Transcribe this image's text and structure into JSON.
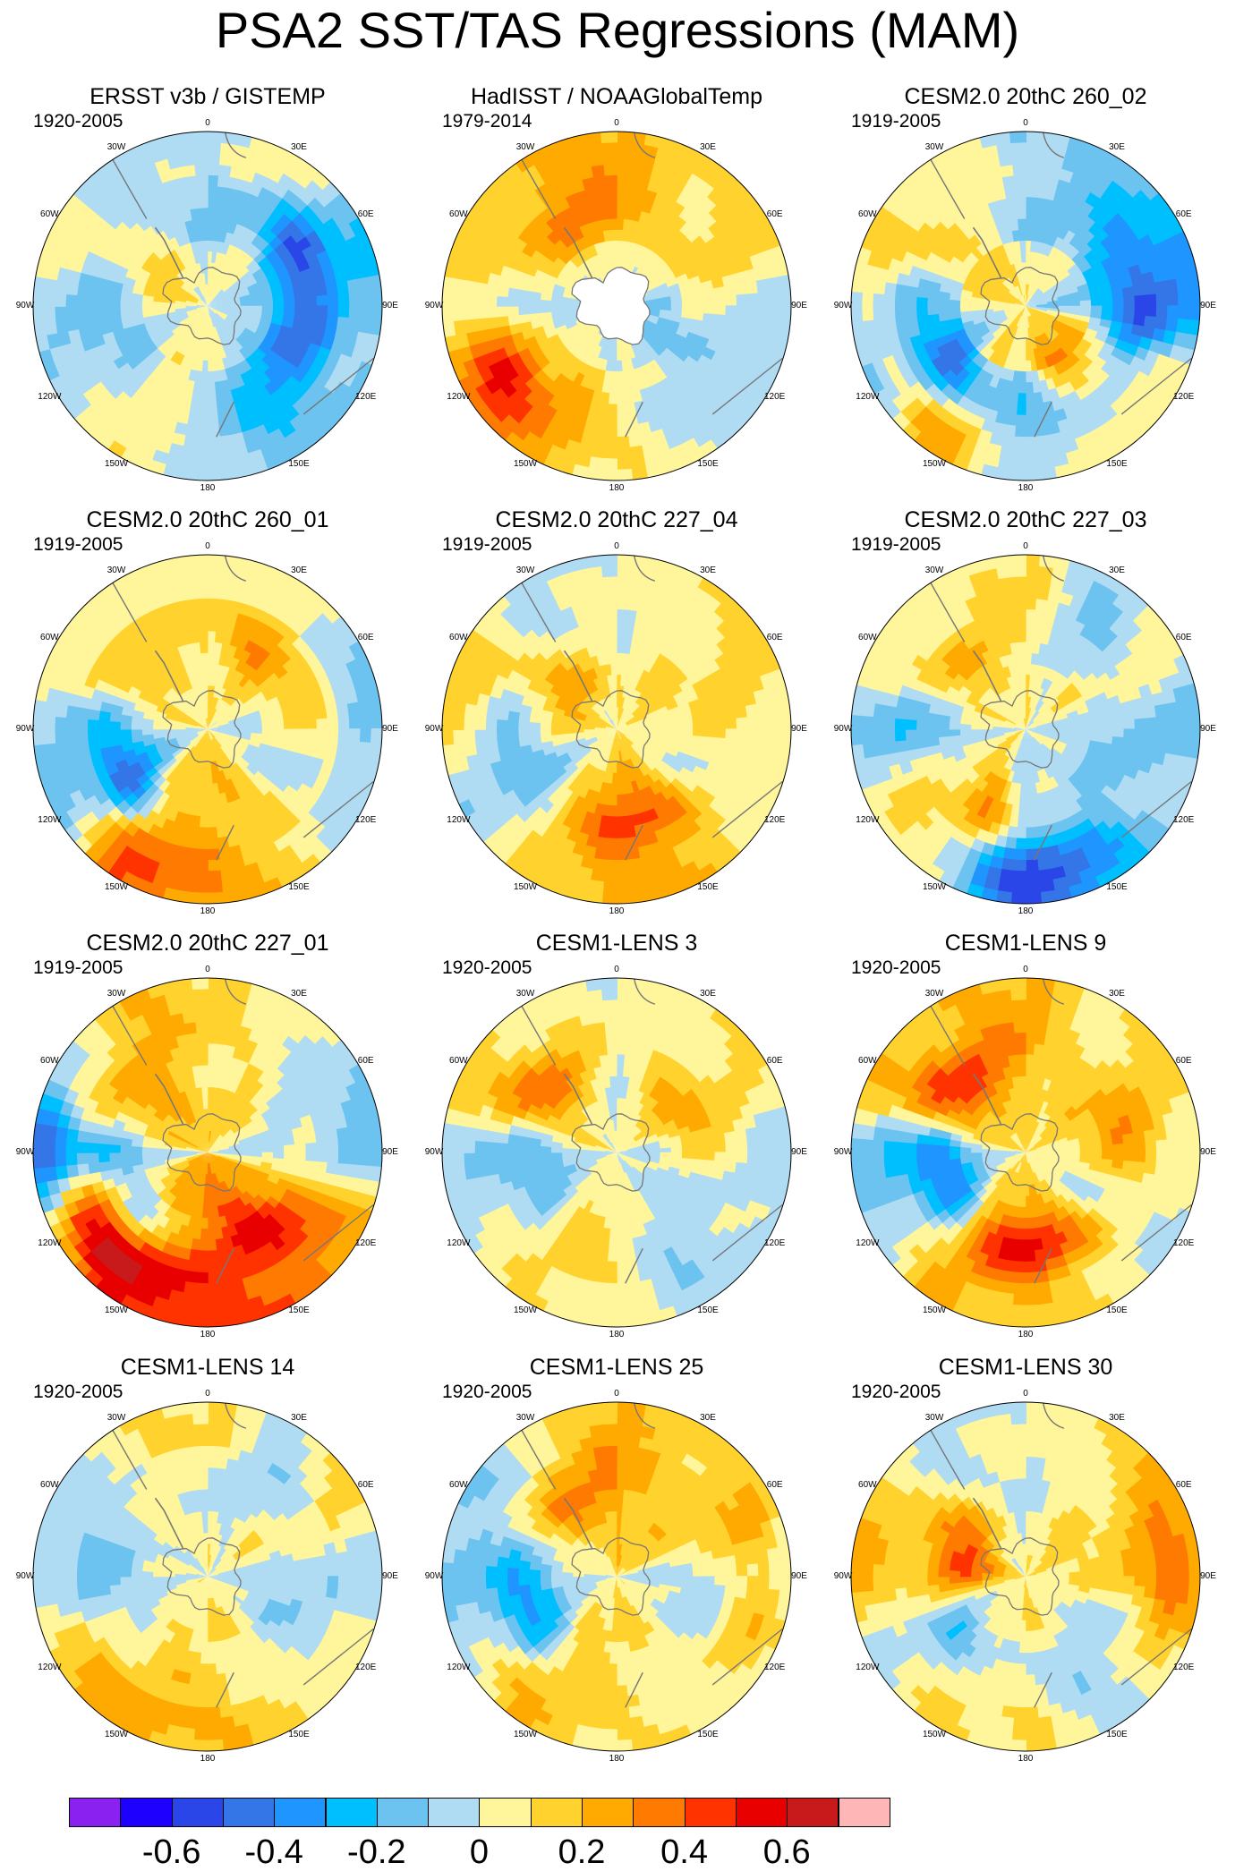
{
  "title": "PSA2 SST/TAS Regressions (MAM)",
  "longitude_labels": [
    "0",
    "30E",
    "60E",
    "90E",
    "120E",
    "150E",
    "180",
    "150W",
    "120W",
    "90W",
    "60W",
    "30W"
  ],
  "panels": [
    {
      "title": "ERSST v3b / GISTEMP",
      "period": "1920-2005",
      "pattern": [
        -0.08,
        0.05,
        -0.18,
        -0.12,
        -0.15,
        -0.18,
        -0.05,
        0.08,
        -0.1,
        -0.12,
        0.05,
        -0.05
      ],
      "rings": [
        0.08,
        -0.05,
        0.05
      ],
      "land": "white-gaps",
      "blobs": [
        [
          60,
          0.6,
          -0.3
        ],
        [
          110,
          0.55,
          -0.25
        ],
        [
          300,
          0.3,
          0.12
        ]
      ]
    },
    {
      "title": "HadISST / NOAAGlobalTemp",
      "period": "1979-2014",
      "pattern": [
        0.15,
        0.08,
        0.12,
        -0.05,
        -0.12,
        -0.05,
        0.05,
        0.15,
        0.2,
        -0.08,
        0.1,
        0.15
      ],
      "rings": [
        -0.1,
        0.05,
        0.1
      ],
      "land": "white-antarctica",
      "blobs": [
        [
          240,
          0.75,
          0.25
        ],
        [
          345,
          0.55,
          0.2
        ]
      ]
    },
    {
      "title": "CESM2.0 20thC 260_02",
      "period": "1919-2005",
      "pattern": [
        -0.05,
        -0.1,
        -0.2,
        -0.25,
        0.1,
        0.08,
        -0.05,
        0.2,
        -0.2,
        -0.1,
        0.15,
        0.1
      ],
      "rings": [
        0.15,
        -0.08,
        -0.05
      ],
      "land": "grey",
      "blobs": [
        [
          95,
          0.65,
          -0.3
        ],
        [
          215,
          0.55,
          -0.35
        ],
        [
          240,
          0.85,
          0.22
        ],
        [
          140,
          0.4,
          0.22
        ]
      ]
    },
    {
      "title": "CESM2.0 20thC 260_01",
      "period": "1919-2005",
      "pattern": [
        0.05,
        0.1,
        -0.05,
        -0.05,
        -0.08,
        0.15,
        0.2,
        0.25,
        -0.2,
        -0.1,
        0.12,
        0.08
      ],
      "rings": [
        0.08,
        0.1,
        -0.05
      ],
      "land": "grey",
      "blobs": [
        [
          240,
          0.55,
          -0.35
        ],
        [
          210,
          0.85,
          0.25
        ],
        [
          45,
          0.55,
          0.2
        ]
      ]
    },
    {
      "title": "CESM2.0 20thC 227_04",
      "period": "1919-2005",
      "pattern": [
        -0.05,
        0.05,
        0.1,
        0.05,
        -0.05,
        0.15,
        0.2,
        0.1,
        -0.12,
        0.05,
        0.12,
        -0.05
      ],
      "rings": [
        0.1,
        0.05,
        0.08
      ],
      "land": "grey",
      "blobs": [
        [
          165,
          0.55,
          0.28
        ],
        [
          260,
          0.6,
          -0.15
        ],
        [
          330,
          0.35,
          0.2
        ]
      ]
    },
    {
      "title": "CESM2.0 20thC 227_03",
      "period": "1919-2005",
      "pattern": [
        0.1,
        -0.05,
        0.08,
        -0.1,
        -0.05,
        -0.15,
        -0.25,
        0.15,
        0.12,
        -0.12,
        0.1,
        0.08
      ],
      "rings": [
        0.05,
        -0.1,
        -0.05
      ],
      "land": "grey",
      "blobs": [
        [
          190,
          0.5,
          0.25
        ],
        [
          180,
          0.85,
          -0.3
        ],
        [
          330,
          0.55,
          0.18
        ]
      ]
    },
    {
      "title": "CESM2.0 20thC 227_01",
      "period": "1919-2005",
      "pattern": [
        0.08,
        0.05,
        -0.1,
        -0.15,
        0.2,
        0.3,
        0.35,
        0.35,
        0.15,
        -0.25,
        0.15,
        0.2
      ],
      "rings": [
        0.2,
        0.1,
        0.05
      ],
      "land": "grey",
      "blobs": [
        [
          230,
          0.8,
          0.38
        ],
        [
          215,
          0.5,
          -0.3
        ],
        [
          150,
          0.55,
          0.3
        ],
        [
          275,
          0.95,
          -0.35
        ]
      ]
    },
    {
      "title": "CESM1-LENS 3",
      "period": "1920-2005",
      "pattern": [
        -0.05,
        0.05,
        0.08,
        -0.05,
        -0.08,
        -0.1,
        0.05,
        0.1,
        -0.05,
        -0.12,
        0.15,
        0.05
      ],
      "rings": [
        0.05,
        0.08,
        0.05
      ],
      "land": "grey",
      "blobs": [
        [
          310,
          0.55,
          0.25
        ],
        [
          265,
          0.5,
          -0.2
        ],
        [
          60,
          0.45,
          0.15
        ]
      ]
    },
    {
      "title": "CESM1-LENS 9",
      "period": "1920-2005",
      "pattern": [
        0.15,
        0.05,
        0.12,
        0.05,
        -0.1,
        0.05,
        0.15,
        0.2,
        -0.08,
        -0.2,
        0.2,
        0.15
      ],
      "rings": [
        0.12,
        0.08,
        0.05
      ],
      "land": "grey",
      "blobs": [
        [
          250,
          0.5,
          -0.35
        ],
        [
          175,
          0.55,
          0.4
        ],
        [
          320,
          0.55,
          0.28
        ],
        [
          80,
          0.55,
          0.15
        ]
      ]
    },
    {
      "title": "CESM1-LENS 14",
      "period": "1920-2005",
      "pattern": [
        0.05,
        -0.05,
        0.08,
        -0.08,
        -0.05,
        0.05,
        0.08,
        0.1,
        0.05,
        -0.1,
        -0.05,
        0.05
      ],
      "rings": [
        0.05,
        -0.05,
        0.08
      ],
      "land": "grey",
      "blobs": [
        [
          180,
          0.6,
          0.1
        ],
        [
          200,
          0.9,
          0.12
        ]
      ]
    },
    {
      "title": "CESM1-LENS 25",
      "period": "1920-2005",
      "pattern": [
        0.2,
        0.15,
        0.12,
        -0.1,
        -0.05,
        0.05,
        0.1,
        0.15,
        -0.1,
        -0.15,
        -0.05,
        0.1
      ],
      "rings": [
        0.1,
        0.05,
        -0.05
      ],
      "land": "grey",
      "blobs": [
        [
          330,
          0.5,
          0.22
        ],
        [
          250,
          0.55,
          -0.25
        ],
        [
          95,
          0.85,
          0.28
        ],
        [
          230,
          0.85,
          0.15
        ]
      ]
    },
    {
      "title": "CESM1-LENS 30",
      "period": "1920-2005",
      "pattern": [
        -0.05,
        0.05,
        0.1,
        0.12,
        -0.05,
        -0.08,
        0.08,
        0.1,
        -0.1,
        0.15,
        0.12,
        -0.05
      ],
      "rings": [
        0.12,
        0.05,
        0.08
      ],
      "land": "grey",
      "blobs": [
        [
          290,
          0.4,
          0.3
        ],
        [
          215,
          0.5,
          -0.2
        ],
        [
          85,
          0.85,
          0.22
        ]
      ]
    }
  ],
  "colorbar": {
    "colors": [
      "#8a21f0",
      "#1e00ff",
      "#2a45e8",
      "#3476e8",
      "#1e95ff",
      "#00bfff",
      "#6cc3f0",
      "#b0dcf3",
      "#fff59a",
      "#ffd22e",
      "#ffaa00",
      "#ff7a00",
      "#ff3300",
      "#e80000",
      "#c81a1a",
      "#ffb6b6"
    ],
    "levels": [
      -0.7,
      -0.6,
      -0.5,
      -0.4,
      -0.3,
      -0.2,
      -0.1,
      0,
      0.1,
      0.2,
      0.3,
      0.4,
      0.5,
      0.6,
      0.7
    ],
    "tick_labels": [
      "-0.6",
      "-0.4",
      "-0.2",
      "0",
      "0.2",
      "0.4",
      "0.6"
    ]
  }
}
